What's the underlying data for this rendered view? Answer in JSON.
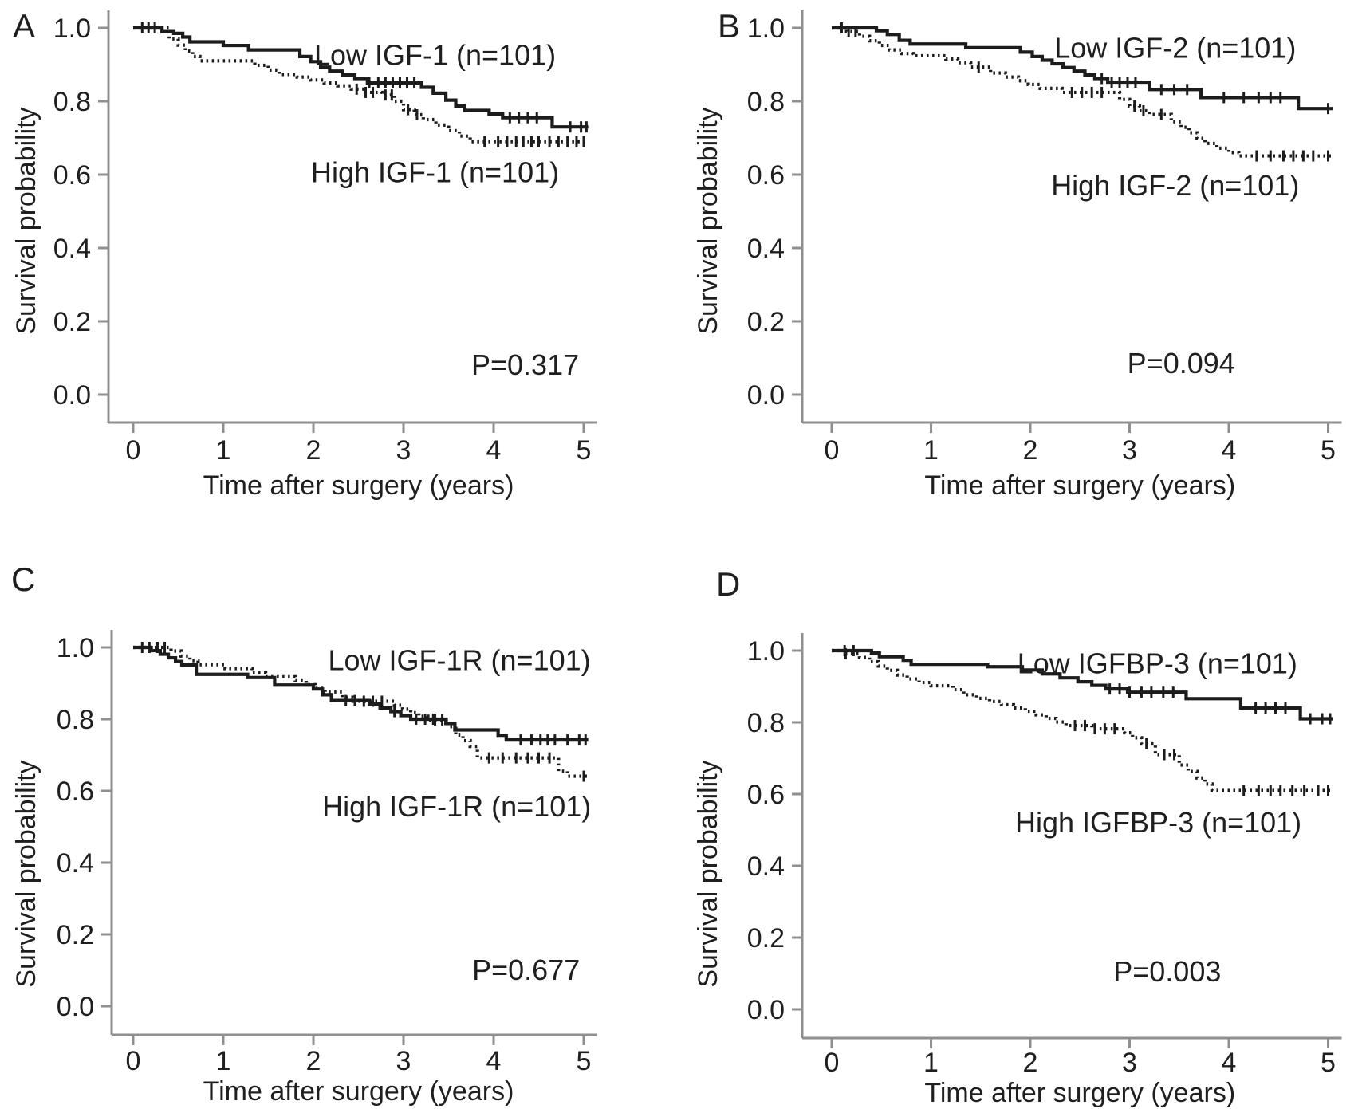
{
  "colors": {
    "curve": "#1c1c1c",
    "axis": "#8f8f8f",
    "text": "#1f1f1f"
  },
  "chart_data": [
    {
      "panel": "A",
      "type": "line",
      "subtype": "kaplan-meier",
      "xlabel": "Time after surgery (years)",
      "ylabel": "Survival probability",
      "xlim": [
        0,
        5
      ],
      "ylim": [
        0.0,
        1.0
      ],
      "xticks": [
        0,
        1,
        2,
        3,
        4,
        5
      ],
      "yticks": [
        0.0,
        0.2,
        0.4,
        0.6,
        0.8,
        1.0
      ],
      "grid": false,
      "p_label": "P=0.317",
      "p_pos": [
        4.35,
        0.08
      ],
      "series": [
        {
          "name": "Low IGF-1 (n=101)",
          "style": "solid",
          "label_pos": [
            3.35,
            0.925
          ],
          "steps": [
            [
              0,
              1.0
            ],
            [
              0.32,
              0.99
            ],
            [
              0.45,
              0.985
            ],
            [
              0.55,
              0.975
            ],
            [
              0.63,
              0.962
            ],
            [
              1.0,
              0.952
            ],
            [
              1.28,
              0.94
            ],
            [
              1.85,
              0.922
            ],
            [
              1.97,
              0.908
            ],
            [
              2.08,
              0.893
            ],
            [
              2.18,
              0.882
            ],
            [
              2.32,
              0.872
            ],
            [
              2.46,
              0.862
            ],
            [
              2.6,
              0.85
            ],
            [
              3.2,
              0.838
            ],
            [
              3.33,
              0.822
            ],
            [
              3.47,
              0.803
            ],
            [
              3.58,
              0.787
            ],
            [
              3.68,
              0.775
            ],
            [
              3.95,
              0.765
            ],
            [
              4.1,
              0.755
            ],
            [
              4.65,
              0.73
            ]
          ],
          "end": 5.05,
          "censor_times": [
            2.62,
            2.72,
            2.8,
            2.88,
            2.96,
            3.04,
            3.12,
            4.18,
            4.28,
            4.38,
            4.48,
            4.85,
            4.97,
            5.03
          ]
        },
        {
          "name": "High IGF-1 (n=101)",
          "style": "dotted",
          "label_pos": [
            3.35,
            0.605
          ],
          "steps": [
            [
              0,
              1.0
            ],
            [
              0.4,
              0.97
            ],
            [
              0.5,
              0.953
            ],
            [
              0.58,
              0.937
            ],
            [
              0.66,
              0.922
            ],
            [
              0.74,
              0.91
            ],
            [
              1.35,
              0.898
            ],
            [
              1.5,
              0.885
            ],
            [
              1.62,
              0.873
            ],
            [
              1.82,
              0.866
            ],
            [
              1.97,
              0.858
            ],
            [
              2.12,
              0.85
            ],
            [
              2.27,
              0.842
            ],
            [
              2.42,
              0.833
            ],
            [
              2.56,
              0.824
            ],
            [
              2.76,
              0.817
            ],
            [
              2.9,
              0.8
            ],
            [
              3.0,
              0.777
            ],
            [
              3.12,
              0.763
            ],
            [
              3.22,
              0.75
            ],
            [
              3.36,
              0.735
            ],
            [
              3.5,
              0.72
            ],
            [
              3.62,
              0.705
            ],
            [
              3.74,
              0.69
            ]
          ],
          "end": 5.05,
          "censor_times": [
            0.1,
            0.17,
            0.24,
            2.48,
            2.58,
            2.66,
            2.8,
            2.87,
            3.05,
            3.15,
            3.9,
            4.05,
            4.15,
            4.25,
            4.33,
            4.42,
            4.5,
            4.62,
            4.72,
            4.82,
            4.92,
            5.0
          ]
        }
      ]
    },
    {
      "panel": "B",
      "type": "line",
      "subtype": "kaplan-meier",
      "xlabel": "Time after surgery (years)",
      "ylabel": "Survival probability",
      "xlim": [
        0,
        5
      ],
      "ylim": [
        0.0,
        1.0
      ],
      "xticks": [
        0,
        1,
        2,
        3,
        4,
        5
      ],
      "yticks": [
        0.0,
        0.2,
        0.4,
        0.6,
        0.8,
        1.0
      ],
      "grid": false,
      "p_label": "P=0.094",
      "p_pos": [
        3.52,
        0.085
      ],
      "series": [
        {
          "name": "Low IGF-2 (n=101)",
          "style": "solid",
          "label_pos": [
            3.46,
            0.945
          ],
          "steps": [
            [
              0,
              1.0
            ],
            [
              0.45,
              0.992
            ],
            [
              0.56,
              0.982
            ],
            [
              0.68,
              0.966
            ],
            [
              0.79,
              0.956
            ],
            [
              1.35,
              0.946
            ],
            [
              1.9,
              0.934
            ],
            [
              2.02,
              0.922
            ],
            [
              2.12,
              0.912
            ],
            [
              2.22,
              0.902
            ],
            [
              2.33,
              0.892
            ],
            [
              2.44,
              0.882
            ],
            [
              2.55,
              0.872
            ],
            [
              2.65,
              0.862
            ],
            [
              2.78,
              0.852
            ],
            [
              3.2,
              0.832
            ],
            [
              3.72,
              0.81
            ],
            [
              4.7,
              0.78
            ]
          ],
          "end": 5.05,
          "censor_times": [
            2.72,
            2.82,
            2.9,
            2.98,
            3.06,
            3.32,
            3.45,
            3.58,
            3.95,
            4.15,
            4.3,
            4.42,
            4.52,
            5.0
          ]
        },
        {
          "name": "High IGF-2 (n=101)",
          "style": "dotted",
          "label_pos": [
            3.46,
            0.57
          ],
          "steps": [
            [
              0,
              1.0
            ],
            [
              0.15,
              0.99
            ],
            [
              0.28,
              0.977
            ],
            [
              0.38,
              0.965
            ],
            [
              0.48,
              0.952
            ],
            [
              0.58,
              0.94
            ],
            [
              0.7,
              0.93
            ],
            [
              0.82,
              0.924
            ],
            [
              1.15,
              0.915
            ],
            [
              1.27,
              0.905
            ],
            [
              1.4,
              0.893
            ],
            [
              1.6,
              0.877
            ],
            [
              1.75,
              0.866
            ],
            [
              1.88,
              0.856
            ],
            [
              1.98,
              0.846
            ],
            [
              2.1,
              0.835
            ],
            [
              2.32,
              0.824
            ],
            [
              2.9,
              0.805
            ],
            [
              3.0,
              0.787
            ],
            [
              3.1,
              0.774
            ],
            [
              3.2,
              0.764
            ],
            [
              3.42,
              0.744
            ],
            [
              3.52,
              0.729
            ],
            [
              3.6,
              0.714
            ],
            [
              3.68,
              0.699
            ],
            [
              3.76,
              0.685
            ],
            [
              3.88,
              0.672
            ],
            [
              4.0,
              0.66
            ],
            [
              4.1,
              0.651
            ]
          ],
          "end": 5.05,
          "censor_times": [
            0.1,
            0.17,
            0.24,
            1.48,
            2.42,
            2.52,
            2.62,
            2.72,
            3.05,
            3.14,
            3.32,
            4.28,
            4.42,
            4.55,
            4.65,
            4.75,
            4.85,
            5.0
          ]
        }
      ]
    },
    {
      "panel": "C",
      "type": "line",
      "subtype": "kaplan-meier",
      "xlabel": "Time after surgery (years)",
      "ylabel": "Survival probability",
      "xlim": [
        0,
        5
      ],
      "ylim": [
        0.0,
        1.0
      ],
      "xticks": [
        0,
        1,
        2,
        3,
        4,
        5
      ],
      "yticks": [
        0.0,
        0.2,
        0.4,
        0.6,
        0.8,
        1.0
      ],
      "grid": false,
      "p_label": "P=0.677",
      "p_pos": [
        4.36,
        0.1
      ],
      "series": [
        {
          "name": "Low IGF-1R (n=101)",
          "style": "solid",
          "label_pos": [
            3.62,
            0.963
          ],
          "steps": [
            [
              0,
              1.0
            ],
            [
              0.2,
              0.991
            ],
            [
              0.3,
              0.981
            ],
            [
              0.39,
              0.971
            ],
            [
              0.47,
              0.961
            ],
            [
              0.54,
              0.951
            ],
            [
              0.7,
              0.925
            ],
            [
              1.27,
              0.916
            ],
            [
              1.57,
              0.895
            ],
            [
              2.0,
              0.884
            ],
            [
              2.1,
              0.868
            ],
            [
              2.2,
              0.852
            ],
            [
              2.62,
              0.842
            ],
            [
              2.74,
              0.831
            ],
            [
              2.86,
              0.821
            ],
            [
              2.97,
              0.81
            ],
            [
              3.08,
              0.8
            ],
            [
              3.47,
              0.788
            ],
            [
              3.57,
              0.77
            ],
            [
              4.05,
              0.753
            ],
            [
              4.14,
              0.742
            ]
          ],
          "end": 5.05,
          "censor_times": [
            2.36,
            2.46,
            2.9,
            3.14,
            3.24,
            3.33,
            4.3,
            4.42,
            4.52,
            4.6,
            4.68,
            4.82,
            4.95,
            5.02
          ]
        },
        {
          "name": "High IGF-1R (n=101)",
          "style": "dotted",
          "label_pos": [
            3.59,
            0.556
          ],
          "steps": [
            [
              0,
              1.0
            ],
            [
              0.42,
              0.99
            ],
            [
              0.53,
              0.976
            ],
            [
              0.63,
              0.963
            ],
            [
              0.72,
              0.952
            ],
            [
              1.02,
              0.941
            ],
            [
              1.32,
              0.929
            ],
            [
              1.47,
              0.918
            ],
            [
              1.8,
              0.907
            ],
            [
              1.92,
              0.896
            ],
            [
              2.02,
              0.886
            ],
            [
              2.13,
              0.876
            ],
            [
              2.32,
              0.861
            ],
            [
              2.44,
              0.85
            ],
            [
              2.9,
              0.839
            ],
            [
              2.99,
              0.828
            ],
            [
              3.08,
              0.818
            ],
            [
              3.17,
              0.808
            ],
            [
              3.27,
              0.798
            ],
            [
              3.5,
              0.779
            ],
            [
              3.58,
              0.755
            ],
            [
              3.66,
              0.74
            ],
            [
              3.74,
              0.724
            ],
            [
              3.82,
              0.692
            ],
            [
              4.72,
              0.655
            ],
            [
              4.82,
              0.641
            ]
          ],
          "end": 5.05,
          "censor_times": [
            0.1,
            0.18,
            0.27,
            0.35,
            2.56,
            2.66,
            2.76,
            3.35,
            3.43,
            3.95,
            4.1,
            4.25,
            4.38,
            4.5,
            4.62,
            5.0
          ]
        }
      ]
    },
    {
      "panel": "D",
      "type": "line",
      "subtype": "kaplan-meier",
      "xlabel": "Time after surgery (years)",
      "ylabel": "Survival probability",
      "xlim": [
        0,
        5
      ],
      "ylim": [
        0.0,
        1.0
      ],
      "xticks": [
        0,
        1,
        2,
        3,
        4,
        5
      ],
      "yticks": [
        0.0,
        0.2,
        0.4,
        0.6,
        0.8,
        1.0
      ],
      "grid": false,
      "p_label": "P=0.003",
      "p_pos": [
        3.38,
        0.105
      ],
      "series": [
        {
          "name": "Low IGFBP-3 (n=101)",
          "style": "solid",
          "label_pos": [
            3.28,
            0.963
          ],
          "steps": [
            [
              0,
              1.0
            ],
            [
              0.4,
              0.993
            ],
            [
              0.48,
              0.983
            ],
            [
              0.72,
              0.973
            ],
            [
              0.8,
              0.962
            ],
            [
              1.57,
              0.955
            ],
            [
              1.92,
              0.946
            ],
            [
              2.12,
              0.935
            ],
            [
              2.3,
              0.924
            ],
            [
              2.48,
              0.913
            ],
            [
              2.62,
              0.903
            ],
            [
              2.76,
              0.893
            ],
            [
              2.98,
              0.884
            ],
            [
              3.57,
              0.866
            ],
            [
              4.12,
              0.84
            ],
            [
              4.72,
              0.81
            ]
          ],
          "end": 5.05,
          "censor_times": [
            0.13,
            0.22,
            2.8,
            2.9,
            3.0,
            3.12,
            3.22,
            3.34,
            3.44,
            4.27,
            4.37,
            4.47,
            4.57,
            4.82,
            4.94,
            5.02
          ]
        },
        {
          "name": "High IGFBP-3 (n=101)",
          "style": "dotted",
          "label_pos": [
            3.29,
            0.52
          ],
          "steps": [
            [
              0,
              1.0
            ],
            [
              0.12,
              0.991
            ],
            [
              0.28,
              0.981
            ],
            [
              0.38,
              0.969
            ],
            [
              0.47,
              0.957
            ],
            [
              0.56,
              0.945
            ],
            [
              0.66,
              0.932
            ],
            [
              0.76,
              0.921
            ],
            [
              0.88,
              0.911
            ],
            [
              1.0,
              0.902
            ],
            [
              1.22,
              0.891
            ],
            [
              1.33,
              0.877
            ],
            [
              1.46,
              0.867
            ],
            [
              1.59,
              0.858
            ],
            [
              1.71,
              0.849
            ],
            [
              1.83,
              0.84
            ],
            [
              1.95,
              0.831
            ],
            [
              2.06,
              0.821
            ],
            [
              2.16,
              0.811
            ],
            [
              2.26,
              0.801
            ],
            [
              2.36,
              0.791
            ],
            [
              2.62,
              0.782
            ],
            [
              2.95,
              0.771
            ],
            [
              3.03,
              0.757
            ],
            [
              3.12,
              0.74
            ],
            [
              3.26,
              0.71
            ],
            [
              3.5,
              0.681
            ],
            [
              3.59,
              0.663
            ],
            [
              3.68,
              0.645
            ],
            [
              3.76,
              0.628
            ],
            [
              3.83,
              0.61
            ]
          ],
          "end": 5.05,
          "censor_times": [
            0.14,
            2.45,
            2.55,
            2.65,
            2.75,
            2.85,
            3.17,
            3.35,
            3.45,
            4.15,
            4.3,
            4.42,
            4.52,
            4.64,
            4.76,
            4.9,
            5.0
          ]
        }
      ]
    }
  ]
}
